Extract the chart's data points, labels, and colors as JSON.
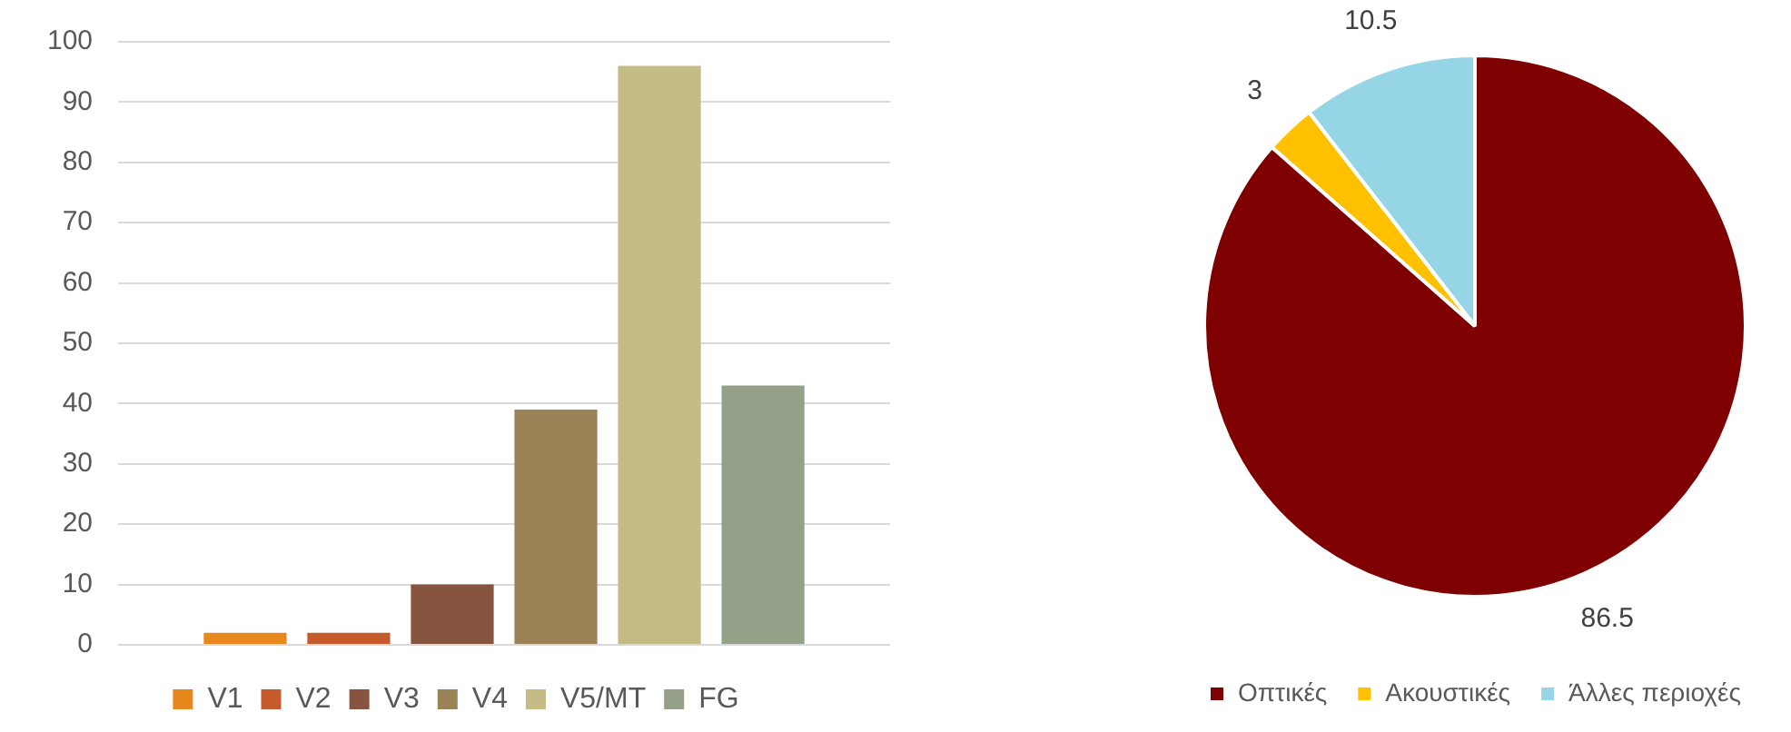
{
  "chart_data": [
    {
      "type": "bar",
      "categories": [
        null
      ],
      "series": [
        {
          "name": "V1",
          "color": "#e8871c",
          "values": [
            2
          ]
        },
        {
          "name": "V2",
          "color": "#c55a2d",
          "values": [
            2
          ]
        },
        {
          "name": "V3",
          "color": "#875440",
          "values": [
            10
          ]
        },
        {
          "name": "V4",
          "color": "#9b8257",
          "values": [
            39
          ]
        },
        {
          "name": "V5/MT",
          "color": "#c4bc84",
          "values": [
            96
          ]
        },
        {
          "name": "FG",
          "color": "#95a088",
          "values": [
            43
          ]
        }
      ],
      "ylim": [
        0,
        100
      ],
      "yticks": [
        0,
        10,
        20,
        30,
        40,
        50,
        60,
        70,
        80,
        90,
        100
      ],
      "grid": "y",
      "legend": "bottom",
      "tick_labels": "y"
    },
    {
      "type": "pie",
      "categories": [
        "Οπτικές",
        "Ακουστικές",
        "Άλλες περιοχές"
      ],
      "values": [
        86.5,
        3,
        10.5
      ],
      "colors": [
        "#7f0000",
        "#ffc000",
        "#95d5e6"
      ],
      "data_labels": true,
      "legend": "bottom"
    }
  ]
}
